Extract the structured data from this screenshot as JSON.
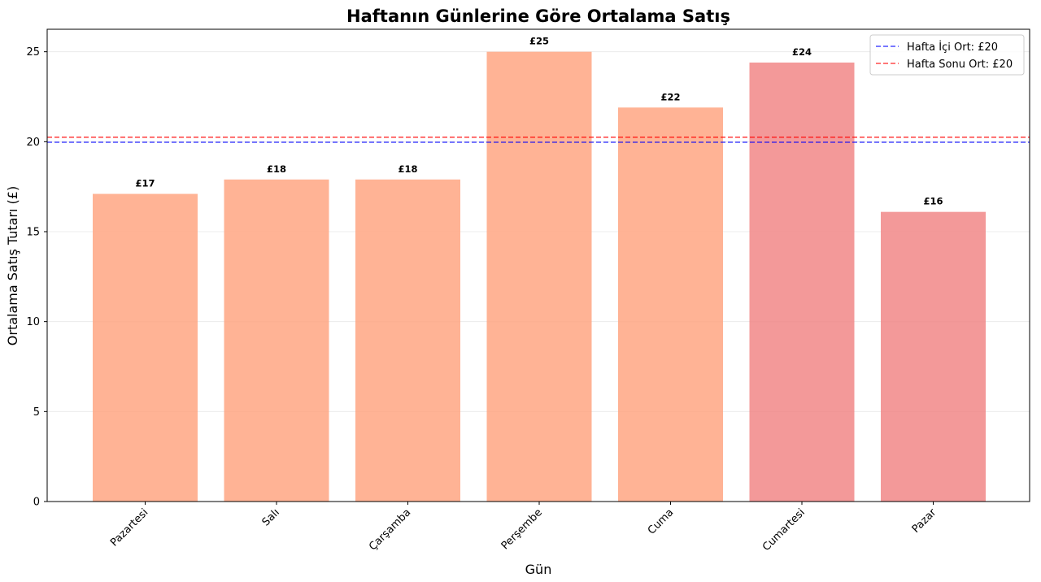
{
  "chart_data": {
    "type": "bar",
    "title": "Haftanın Günlerine Göre Ortalama Satış",
    "xlabel": "Gün",
    "ylabel": "Ortalama Satış Tutarı (£)",
    "categories": [
      "Pazartesi",
      "Salı",
      "Çarşamba",
      "Perşembe",
      "Cuma",
      "Cumartesi",
      "Pazar"
    ],
    "values": [
      17.1,
      17.9,
      17.9,
      25.0,
      21.9,
      24.4,
      16.1
    ],
    "data_labels": [
      "£17",
      "£18",
      "£18",
      "£25",
      "£22",
      "£24",
      "£16"
    ],
    "bar_colors": [
      "#ffa07a",
      "#ffa07a",
      "#ffa07a",
      "#ffa07a",
      "#ffa07a",
      "#f08080",
      "#f08080"
    ],
    "bar_opacity": 0.8,
    "ylim": [
      0,
      26.25
    ],
    "yticks": [
      0,
      5,
      10,
      15,
      20,
      25
    ],
    "ytick_labels": [
      "0",
      "5",
      "10",
      "15",
      "20",
      "25"
    ],
    "grid": "y",
    "reference_lines": [
      {
        "label": "Hafta İçi Ort: £20",
        "value": 19.97,
        "color": "#0000ff",
        "style": "dashed"
      },
      {
        "label": "Hafta Sonu Ort: £20",
        "value": 20.25,
        "color": "#ff0000",
        "style": "dashed"
      }
    ],
    "legend_position": "top-right",
    "x_tick_rotation": 45
  }
}
